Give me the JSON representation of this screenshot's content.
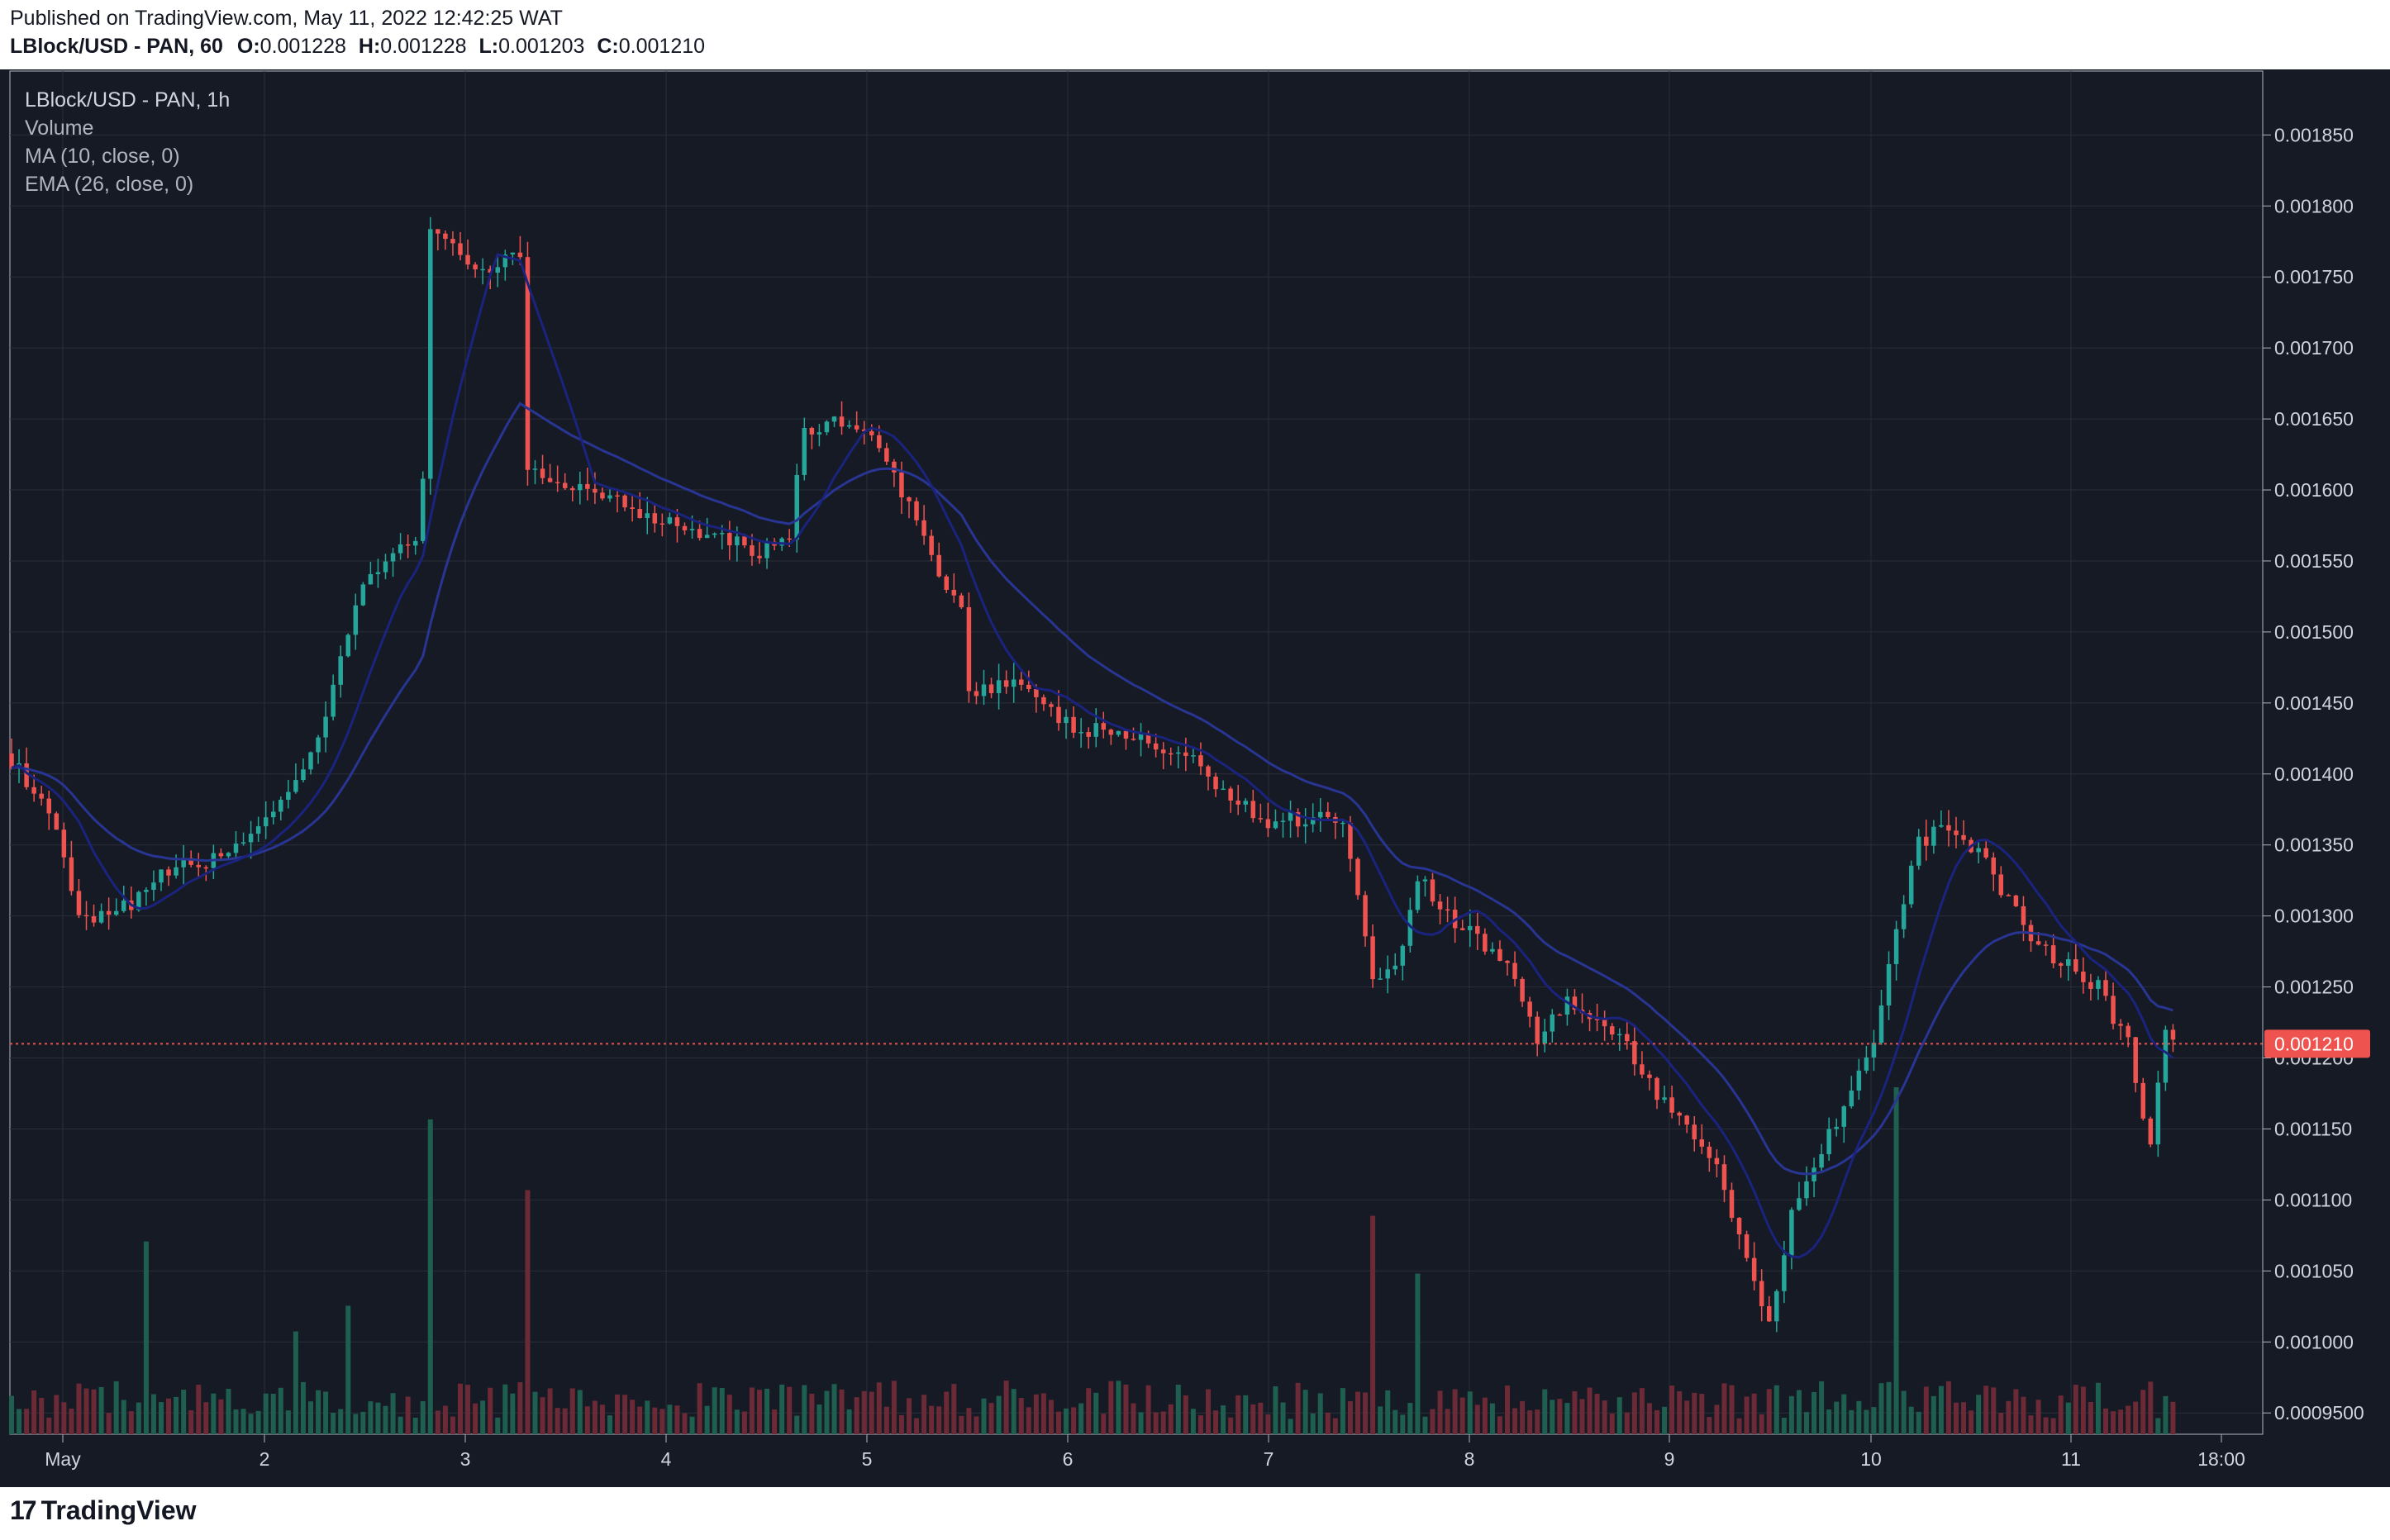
{
  "header": {
    "published": "Published on TradingView.com, May 11, 2022 12:42:25 WAT",
    "symbol_line": "LBlock/USD - PAN, 60",
    "o_label": "O:",
    "o_value": "0.001228",
    "h_label": "H:",
    "h_value": "0.001228",
    "l_label": "L:",
    "l_value": "0.001203",
    "c_label": "C:",
    "c_value": "0.001210"
  },
  "legend": {
    "symbol": "LBlock/USD - PAN, 1h",
    "volume": "Volume",
    "ma": "MA (10, close, 0)",
    "ema": "EMA (26, close, 0)"
  },
  "footer": {
    "brand": "TradingView",
    "brand_mark": "17"
  },
  "colors": {
    "background": "#161a25",
    "grid": "#2a2e39",
    "up": "#26a69a",
    "down": "#ef5350",
    "vol_up": "#1f5f50",
    "vol_down": "#6b2a35",
    "ma": "#1a237e",
    "ema": "#283593",
    "price_line": "#ef5350",
    "axis_text": "#d1d4dc"
  },
  "chart_data": {
    "type": "candlestick",
    "timeframe": "1h",
    "x_ticks": [
      "May",
      "2",
      "3",
      "4",
      "5",
      "6",
      "7",
      "8",
      "9",
      "10",
      "11",
      "18:00"
    ],
    "y_ticks": [
      "0.001850",
      "0.001800",
      "0.001750",
      "0.001700",
      "0.001650",
      "0.001600",
      "0.001550",
      "0.001500",
      "0.001450",
      "0.001400",
      "0.001350",
      "0.001300",
      "0.001250",
      "0.001200",
      "0.001150",
      "0.001100",
      "0.001050",
      "0.001000",
      "0.0009500"
    ],
    "ylim": [
      0.000935,
      0.001895
    ],
    "last_price": 0.00121,
    "last_price_label": "0.001210",
    "close_keypoints": [
      [
        0,
        0.00141
      ],
      [
        6,
        0.00136
      ],
      [
        9,
        0.001295
      ],
      [
        14,
        0.0013
      ],
      [
        17,
        0.001315
      ],
      [
        22,
        0.001335
      ],
      [
        28,
        0.00134
      ],
      [
        34,
        0.00137
      ],
      [
        38,
        0.00139
      ],
      [
        41,
        0.00142
      ],
      [
        43,
        0.00146
      ],
      [
        46,
        0.00152
      ],
      [
        49,
        0.001545
      ],
      [
        52,
        0.00156
      ],
      [
        54,
        0.00157
      ],
      [
        55,
        0.00161
      ],
      [
        56,
        0.00178
      ],
      [
        60,
        0.001765
      ],
      [
        64,
        0.001755
      ],
      [
        68,
        0.001765
      ],
      [
        69,
        0.00161
      ],
      [
        74,
        0.001605
      ],
      [
        78,
        0.0016
      ],
      [
        84,
        0.001585
      ],
      [
        90,
        0.001575
      ],
      [
        97,
        0.001565
      ],
      [
        100,
        0.001555
      ],
      [
        104,
        0.00157
      ],
      [
        106,
        0.00164
      ],
      [
        110,
        0.00165
      ],
      [
        114,
        0.00164
      ],
      [
        117,
        0.00162
      ],
      [
        121,
        0.001575
      ],
      [
        124,
        0.001545
      ],
      [
        127,
        0.001515
      ],
      [
        128,
        0.00146
      ],
      [
        134,
        0.001465
      ],
      [
        138,
        0.001445
      ],
      [
        143,
        0.00143
      ],
      [
        148,
        0.00143
      ],
      [
        152,
        0.00142
      ],
      [
        156,
        0.001415
      ],
      [
        160,
        0.0014
      ],
      [
        164,
        0.00138
      ],
      [
        168,
        0.001365
      ],
      [
        173,
        0.00137
      ],
      [
        178,
        0.00137
      ],
      [
        182,
        0.001255
      ],
      [
        186,
        0.001275
      ],
      [
        188,
        0.00133
      ],
      [
        192,
        0.0013
      ],
      [
        196,
        0.001285
      ],
      [
        200,
        0.001265
      ],
      [
        204,
        0.001215
      ],
      [
        208,
        0.00124
      ],
      [
        212,
        0.001225
      ],
      [
        216,
        0.00121
      ],
      [
        220,
        0.00117
      ],
      [
        224,
        0.001155
      ],
      [
        228,
        0.001125
      ],
      [
        232,
        0.00106
      ],
      [
        235,
        0.00101
      ],
      [
        238,
        0.001095
      ],
      [
        242,
        0.001135
      ],
      [
        246,
        0.00118
      ],
      [
        249,
        0.00121
      ],
      [
        252,
        0.00129
      ],
      [
        255,
        0.00135
      ],
      [
        259,
        0.001365
      ],
      [
        263,
        0.001345
      ],
      [
        267,
        0.00131
      ],
      [
        271,
        0.00128
      ],
      [
        275,
        0.001265
      ],
      [
        279,
        0.00125
      ],
      [
        283,
        0.00121
      ],
      [
        286,
        0.001135
      ],
      [
        288,
        0.00122
      ],
      [
        290,
        0.00121
      ]
    ],
    "volume_spikes": [
      [
        56,
        0.000245
      ],
      [
        69,
        0.00019
      ],
      [
        18,
        0.00015
      ],
      [
        182,
        0.00017
      ],
      [
        252,
        0.00027
      ],
      [
        188,
        0.000125
      ],
      [
        45,
        0.0001
      ],
      [
        38,
        8e-05
      ]
    ],
    "indicators": [
      "Volume",
      "MA (10, close, 0)",
      "EMA (26, close, 0)"
    ]
  }
}
